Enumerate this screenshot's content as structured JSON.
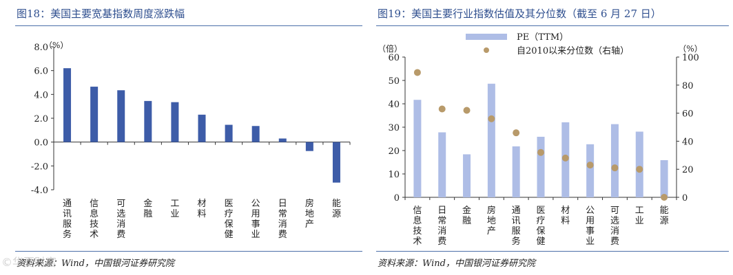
{
  "left": {
    "title": "图18：美国主要宽基指数周度涨跌幅",
    "source": "资料来源：Wind，中国银河证券研究院",
    "watermark": "©华夏财富",
    "chart_data": {
      "type": "bar",
      "title": "图18：美国主要宽基指数周度涨跌幅",
      "ylabel": "（%）",
      "categories": [
        "通讯服务",
        "信息技术",
        "可选消费",
        "金融",
        "工业",
        "材料",
        "医疗保健",
        "公用事业",
        "日常消费",
        "房地产",
        "能源"
      ],
      "values": [
        6.2,
        4.65,
        4.35,
        3.45,
        3.35,
        2.3,
        1.45,
        1.35,
        0.3,
        -0.75,
        -3.4
      ],
      "ylim": [
        -4.0,
        8.0
      ],
      "yticks": [
        -4.0,
        -2.0,
        0.0,
        2.0,
        4.0,
        6.0,
        8.0
      ],
      "ytick_labels": [
        "-4.0",
        "-2.0",
        "0.0",
        "2.0",
        "4.0",
        "6.0",
        "8.0"
      ],
      "color": "#3d5ca8"
    }
  },
  "right": {
    "title": "图19：美国主要行业指数估值及其分位数（截至 6 月 27 日）",
    "source": "资料来源：Wind，中国银河证券研究院",
    "chart_data": {
      "type": "bar",
      "title": "图19：美国主要行业指数估值及其分位数（截至 6 月 27 日）",
      "categories": [
        "信息技术",
        "日常消费",
        "金融",
        "房地产",
        "通讯服务",
        "医疗保健",
        "材料",
        "公用事业",
        "可选消费",
        "工业",
        "能源"
      ],
      "series": [
        {
          "name": "PE（TTM）",
          "type": "bar",
          "axis": "left",
          "color": "#aebde6",
          "values": [
            41.7,
            27.8,
            18.4,
            48.6,
            21.8,
            25.9,
            32.1,
            22.7,
            31.3,
            28.1,
            15.9
          ]
        },
        {
          "name": "自2010以来分位数（右轴）",
          "type": "scatter",
          "axis": "right",
          "color": "#b89a6a",
          "values": [
            89,
            63,
            62,
            56,
            46,
            32,
            28,
            23,
            21,
            20,
            0
          ]
        }
      ],
      "y_left": {
        "label": "（倍）",
        "ylim": [
          0,
          60
        ],
        "ticks": [
          0,
          10,
          20,
          30,
          40,
          50,
          60
        ]
      },
      "y_right": {
        "label": "（%）",
        "ylim": [
          0,
          100
        ],
        "ticks": [
          0,
          20,
          40,
          60,
          80,
          100
        ]
      }
    }
  }
}
